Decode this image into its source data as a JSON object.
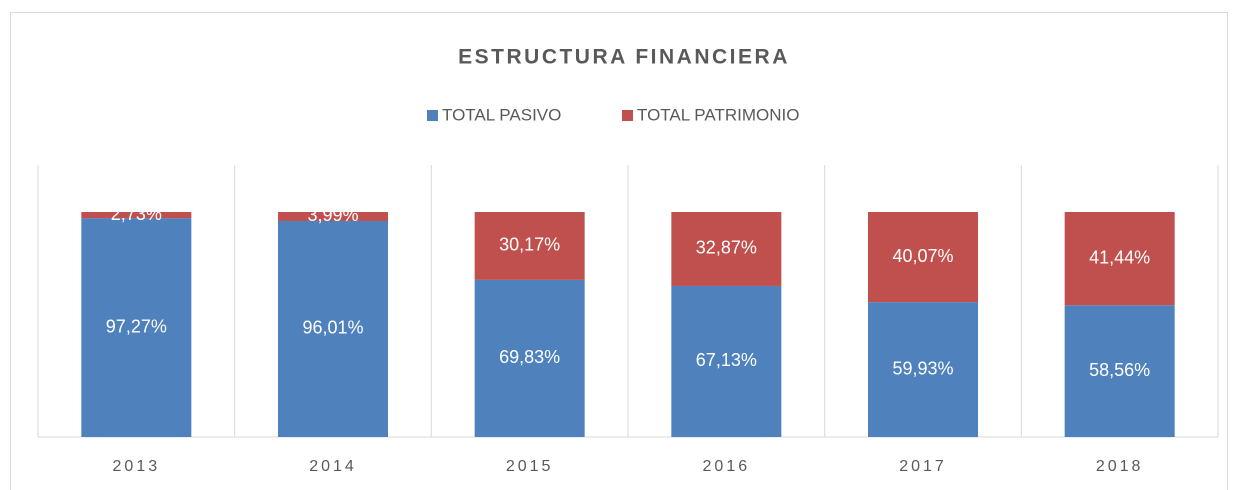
{
  "chart_data": {
    "type": "stacked_bar",
    "title": "ESTRUCTURA FINANCIERA",
    "categories": [
      "2013",
      "2014",
      "2015",
      "2016",
      "2017",
      "2018"
    ],
    "ylim": [
      0,
      100
    ],
    "series": [
      {
        "name": "TOTAL PASIVO",
        "color": "#4f81bd",
        "values": [
          97.27,
          96.01,
          69.83,
          67.13,
          59.93,
          58.56
        ],
        "value_labels": [
          "97,27%",
          "96,01%",
          "69,83%",
          "67,13%",
          "59,93%",
          "58,56%"
        ]
      },
      {
        "name": "TOTAL PATRIMONIO",
        "color": "#c0504d",
        "values": [
          2.73,
          3.99,
          30.17,
          32.87,
          40.07,
          41.44
        ],
        "value_labels": [
          "2,73%",
          "3,99%",
          "30,17%",
          "32,87%",
          "40,07%",
          "41,44%"
        ]
      }
    ]
  }
}
